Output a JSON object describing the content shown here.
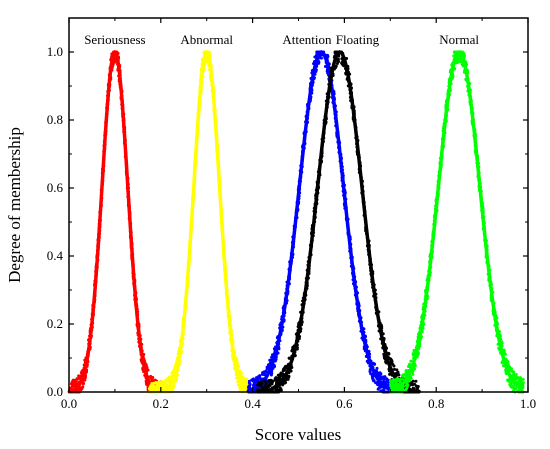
{
  "chart_data": {
    "type": "scatter",
    "title": "",
    "xlabel": "Score values",
    "ylabel": "Degree of membership",
    "xlim": [
      0.0,
      1.0
    ],
    "ylim": [
      0.0,
      1.1
    ],
    "grid": false,
    "legend": "none",
    "x_ticks": [
      "0.0",
      "0.2",
      "0.4",
      "0.6",
      "0.8",
      "1.0"
    ],
    "y_ticks": [
      "0.0",
      "0.2",
      "0.4",
      "0.6",
      "0.8",
      "1.0"
    ],
    "curve": "gaussian",
    "series": [
      {
        "name": "Seriousness",
        "center": 0.1,
        "sigma": 0.028,
        "x_range": [
          0.0,
          0.205
        ],
        "color": "#ff0000"
      },
      {
        "name": "Abnormal",
        "center": 0.3,
        "sigma": 0.028,
        "x_range": [
          0.175,
          0.395
        ],
        "color": "#ffff00"
      },
      {
        "name": "Attention",
        "center": 0.55,
        "sigma": 0.048,
        "x_range": [
          0.39,
          0.735
        ],
        "color": "#0000ff"
      },
      {
        "name": "Floating",
        "center": 0.59,
        "sigma": 0.048,
        "x_range": [
          0.41,
          0.765
        ],
        "color": "#000000"
      },
      {
        "name": "Normal",
        "center": 0.85,
        "sigma": 0.045,
        "x_range": [
          0.7,
          0.99
        ],
        "color": "#00ff00"
      }
    ]
  }
}
